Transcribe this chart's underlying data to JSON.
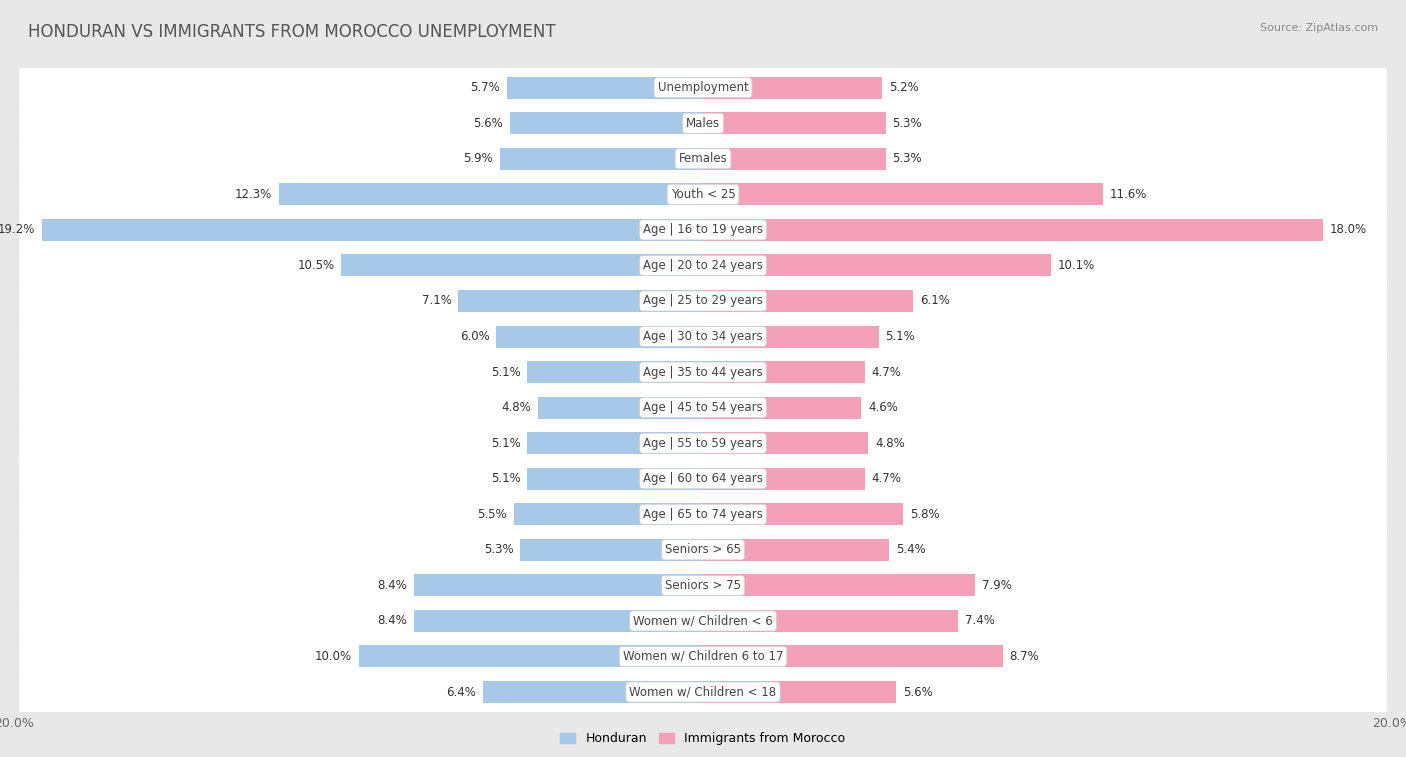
{
  "title": "HONDURAN VS IMMIGRANTS FROM MOROCCO UNEMPLOYMENT",
  "source": "Source: ZipAtlas.com",
  "categories": [
    "Unemployment",
    "Males",
    "Females",
    "Youth < 25",
    "Age | 16 to 19 years",
    "Age | 20 to 24 years",
    "Age | 25 to 29 years",
    "Age | 30 to 34 years",
    "Age | 35 to 44 years",
    "Age | 45 to 54 years",
    "Age | 55 to 59 years",
    "Age | 60 to 64 years",
    "Age | 65 to 74 years",
    "Seniors > 65",
    "Seniors > 75",
    "Women w/ Children < 6",
    "Women w/ Children 6 to 17",
    "Women w/ Children < 18"
  ],
  "honduran": [
    5.7,
    5.6,
    5.9,
    12.3,
    19.2,
    10.5,
    7.1,
    6.0,
    5.1,
    4.8,
    5.1,
    5.1,
    5.5,
    5.3,
    8.4,
    8.4,
    10.0,
    6.4
  ],
  "morocco": [
    5.2,
    5.3,
    5.3,
    11.6,
    18.0,
    10.1,
    6.1,
    5.1,
    4.7,
    4.6,
    4.8,
    4.7,
    5.8,
    5.4,
    7.9,
    7.4,
    8.7,
    5.6
  ],
  "honduran_color": "#a8c8e8",
  "morocco_color": "#f4a0b8",
  "row_bg_light": "#f0f0f0",
  "row_bg_dark": "#e0e0e0",
  "fig_bg": "#e8e8e8",
  "max_val": 20.0,
  "label_fontsize": 8.5,
  "title_fontsize": 12,
  "source_fontsize": 8,
  "legend_honduran": "Honduran",
  "legend_morocco": "Immigrants from Morocco"
}
